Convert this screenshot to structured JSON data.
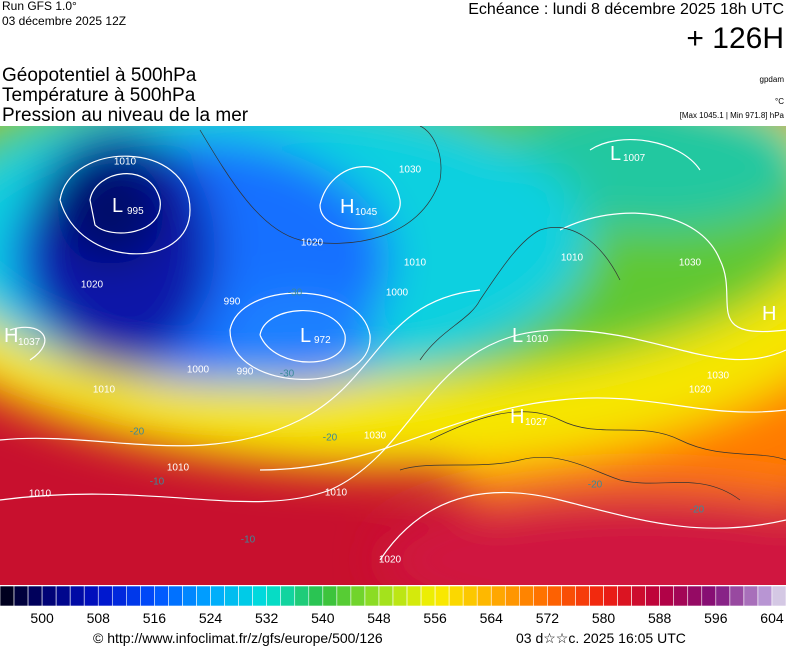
{
  "header": {
    "run": "Run GFS 1.0°",
    "run_date": "03 décembre 2025 12Z",
    "valid": "Echéance : lundi 8 décembre 2025 18h UTC",
    "lead": "+ 126H",
    "fields": [
      "Géopotentiel à 500hPa",
      "Température à 500hPa",
      "Pression au niveau de la mer"
    ],
    "units": [
      "gpdam",
      "°C",
      "[Max 1045.1 | Min 971.8] hPa"
    ]
  },
  "map": {
    "centers": [
      {
        "symbol": "L",
        "value": "995"
      },
      {
        "symbol": "H",
        "value": "1045"
      },
      {
        "symbol": "L",
        "value": "972"
      },
      {
        "symbol": "L",
        "value": "1007"
      },
      {
        "symbol": "H",
        "value": "1027"
      },
      {
        "symbol": "L",
        "value": "1010"
      },
      {
        "symbol": "H",
        "value": "1037"
      },
      {
        "symbol": "H"
      }
    ],
    "isobar_labels": [
      "1010",
      "1020",
      "1010",
      "1000",
      "990",
      "1000",
      "990",
      "1020",
      "1010",
      "1030",
      "1010",
      "1030",
      "1030",
      "1020",
      "1030",
      "1010",
      "1010",
      "1010",
      "1020"
    ],
    "temp_labels": [
      "-30",
      "-30",
      "-20",
      "-20",
      "-20",
      "-20",
      "-10",
      "-10"
    ]
  },
  "colorbar": {
    "range": [
      494,
      606
    ],
    "step": 2,
    "ticks": [
      500,
      508,
      516,
      524,
      532,
      540,
      548,
      556,
      564,
      572,
      580,
      588,
      596,
      604
    ],
    "stops": [
      {
        "value": 494,
        "color": "#000010"
      },
      {
        "value": 500,
        "color": "#00006a"
      },
      {
        "value": 508,
        "color": "#0010c8"
      },
      {
        "value": 516,
        "color": "#0050ff"
      },
      {
        "value": 524,
        "color": "#00a8ff"
      },
      {
        "value": 532,
        "color": "#00e0d8"
      },
      {
        "value": 540,
        "color": "#30c040"
      },
      {
        "value": 548,
        "color": "#98e020"
      },
      {
        "value": 556,
        "color": "#f8f000"
      },
      {
        "value": 564,
        "color": "#ffb000"
      },
      {
        "value": 572,
        "color": "#ff6a00"
      },
      {
        "value": 580,
        "color": "#f02010"
      },
      {
        "value": 588,
        "color": "#b80040"
      },
      {
        "value": 596,
        "color": "#80107a"
      },
      {
        "value": 604,
        "color": "#c0a8e0"
      },
      {
        "value": 606,
        "color": "#e8e8e8"
      }
    ]
  },
  "footer": {
    "source": "© http://www.infoclimat.fr/z/gfs/europe/500/126",
    "timestamp": "03 d☆☆c. 2025 16:05 UTC"
  }
}
